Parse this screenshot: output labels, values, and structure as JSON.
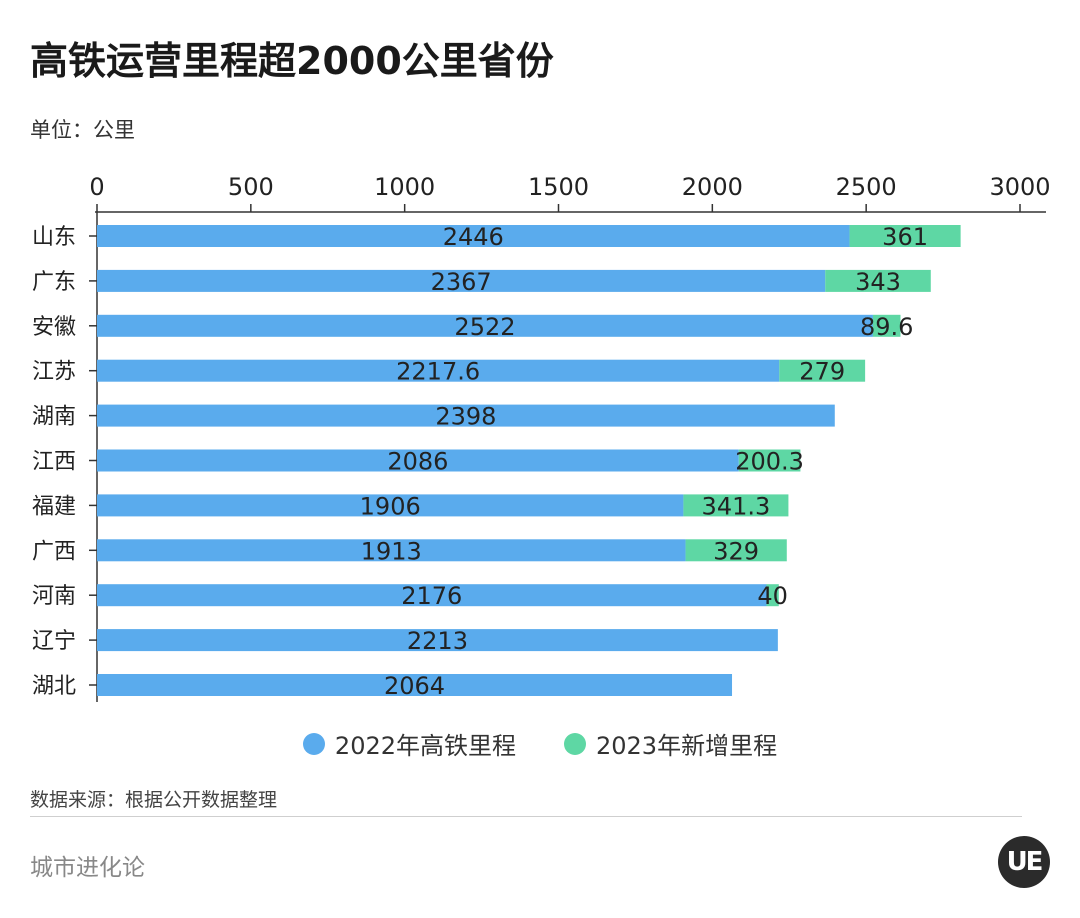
{
  "title": "高铁运营里程超2000公里省份",
  "unit_label": "单位：公里",
  "source": "数据来源：根据公开数据整理",
  "brand": "城市进化论",
  "logo_text": "UE",
  "colors": {
    "series_2022": "#5aabed",
    "series_2023": "#5ed7a4",
    "axis": "#333333"
  },
  "chart_data": {
    "type": "bar",
    "orientation": "horizontal",
    "stacked": true,
    "categories": [
      "山东",
      "广东",
      "安徽",
      "江苏",
      "湖南",
      "江西",
      "福建",
      "广西",
      "河南",
      "辽宁",
      "湖北"
    ],
    "series": [
      {
        "name": "2022年高铁里程",
        "values": [
          2446,
          2367,
          2522,
          2217.6,
          2398,
          2086,
          1906,
          1913,
          2176,
          2213,
          2064
        ]
      },
      {
        "name": "2023年新增里程",
        "values": [
          361,
          343,
          89.6,
          279,
          null,
          200.3,
          341.3,
          329,
          40,
          null,
          null
        ]
      }
    ],
    "xlim": [
      0,
      3000
    ],
    "xticks": [
      0,
      500,
      1000,
      1500,
      2000,
      2500,
      3000
    ],
    "axis_position": "top",
    "grid": false,
    "legend_position": "bottom"
  }
}
